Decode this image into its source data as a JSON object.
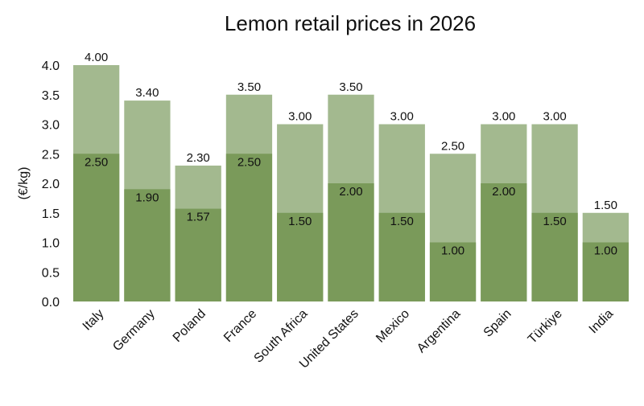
{
  "chart_data": {
    "type": "bar",
    "title": "Lemon retail prices in 2026",
    "xlabel": "",
    "ylabel": "(€/kg)",
    "ylim": [
      0,
      4.0
    ],
    "yticks": [
      "0.0",
      "0.5",
      "1.0",
      "1.5",
      "2.0",
      "2.5",
      "3.0",
      "3.5",
      "4.0"
    ],
    "categories": [
      "Italy",
      "Germany",
      "Poland",
      "France",
      "South Africa",
      "United States",
      "Mexico",
      "Argentina",
      "Spain",
      "Türkiye",
      "India"
    ],
    "series": [
      {
        "values": [
          2.5,
          1.9,
          1.57,
          2.5,
          1.5,
          2.0,
          1.5,
          1.0,
          2.0,
          1.5,
          1.0
        ],
        "labels": [
          "2.50",
          "1.90",
          "1.57",
          "2.50",
          "1.50",
          "2.00",
          "1.50",
          "1.00",
          "2.00",
          "1.50",
          "1.00"
        ],
        "color": "#7a9a5a"
      },
      {
        "values": [
          4.0,
          3.4,
          2.3,
          3.5,
          3.0,
          3.5,
          3.0,
          2.5,
          3.0,
          3.0,
          1.5
        ],
        "labels": [
          "4.00",
          "3.40",
          "2.30",
          "3.50",
          "3.00",
          "3.50",
          "3.00",
          "2.50",
          "3.00",
          "3.00",
          "1.50"
        ],
        "color": "#a3b98f"
      }
    ],
    "grid": false,
    "legend": "none"
  }
}
